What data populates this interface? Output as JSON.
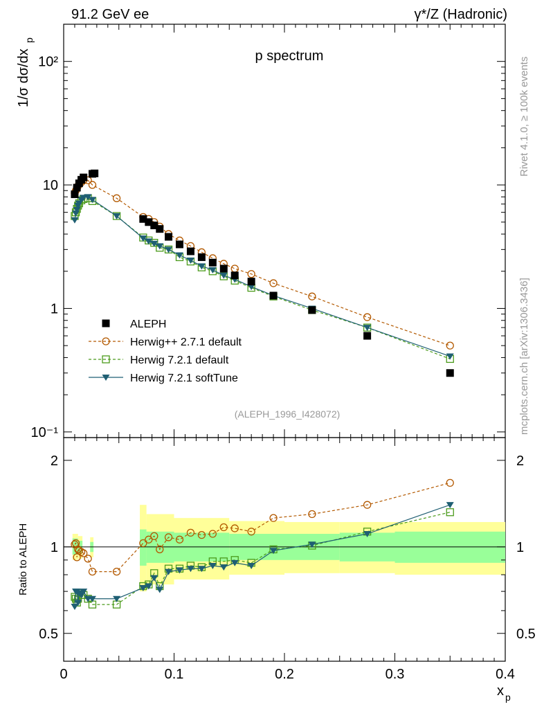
{
  "header": {
    "left": "91.2 GeV ee",
    "right": "γ*/Z (Hadronic)"
  },
  "side": {
    "rivet": "Rivet 4.1.0, ≥ 100k events",
    "mcplots": "mcplots.cern.ch [arXiv:1306.3436]"
  },
  "chart_data": {
    "type": "scatter",
    "title": "p spectrum",
    "analysis_tag": "(ALEPH_1996_I428072)",
    "xlabel": "x",
    "xlabel_sub": "p",
    "ylabel": "1/σ  dσ/dx",
    "ylabel_sub": "p",
    "ratio_ylabel": "Ratio to ALEPH",
    "xlim": [
      0,
      0.4
    ],
    "ylim": [
      0.09,
      200
    ],
    "yscale": "log",
    "ratio_ylim": [
      0.4,
      2.4
    ],
    "ratio_yscale": "log",
    "x_ticks": [
      0,
      0.1,
      0.2,
      0.3,
      0.4
    ],
    "x_tick_labels": [
      "0",
      "0.1",
      "0.2",
      "0.3",
      "0.4"
    ],
    "y_ticks": [
      0.1,
      1,
      10,
      100
    ],
    "y_tick_labels": [
      "10⁻¹",
      "1",
      "10",
      "10²"
    ],
    "ratio_ticks": [
      0.5,
      1,
      2
    ],
    "ratio_tick_labels": [
      "0.5",
      "1",
      "2"
    ],
    "legend": [
      {
        "name": "ALEPH",
        "style": "data"
      },
      {
        "name": "Herwig++ 2.7.1 default",
        "style": "circle"
      },
      {
        "name": "Herwig 7.2.1 default",
        "style": "square"
      },
      {
        "name": "Herwig 7.2.1 softTune",
        "style": "triangle"
      }
    ],
    "data": {
      "name": "ALEPH",
      "x": [
        0.01,
        0.012,
        0.014,
        0.016,
        0.018,
        0.026,
        0.028,
        0.072,
        0.077,
        0.082,
        0.087,
        0.095,
        0.105,
        0.115,
        0.125,
        0.135,
        0.145,
        0.155,
        0.17,
        0.19,
        0.225,
        0.275,
        0.35
      ],
      "values": [
        8.4,
        9.5,
        10.3,
        11.0,
        11.5,
        12.3,
        12.4,
        5.3,
        5.0,
        4.7,
        4.4,
        3.8,
        3.3,
        2.9,
        2.6,
        2.35,
        2.1,
        1.85,
        1.65,
        1.27,
        0.97,
        0.6,
        0.3
      ],
      "ratio_band_inner_x": [
        [
          0.069,
          0.075
        ],
        [
          0.075,
          0.1
        ],
        [
          0.1,
          0.15
        ],
        [
          0.15,
          0.2
        ],
        [
          0.2,
          0.25
        ],
        [
          0.25,
          0.3
        ],
        [
          0.3,
          0.4
        ]
      ],
      "ratio_band_inner_lo": [
        0.86,
        0.88,
        0.89,
        0.9,
        0.9,
        0.89,
        0.88
      ],
      "ratio_band_inner_hi": [
        1.15,
        1.13,
        1.12,
        1.11,
        1.11,
        1.12,
        1.13
      ],
      "ratio_band_outer_lo": [
        0.7,
        0.74,
        0.77,
        0.8,
        0.81,
        0.81,
        0.8
      ],
      "ratio_band_outer_hi": [
        1.4,
        1.3,
        1.26,
        1.23,
        1.22,
        1.22,
        1.22
      ],
      "small_bands": [
        {
          "x": [
            0.008,
            0.013
          ],
          "lo": 0.94,
          "hi": 1.07
        },
        {
          "x": [
            0.013,
            0.017
          ],
          "lo": 0.95,
          "hi": 1.05
        },
        {
          "x": [
            0.024,
            0.027
          ],
          "lo": 0.96,
          "hi": 1.04
        }
      ]
    },
    "series": [
      {
        "name": "Herwig++ 2.7.1 default",
        "color": "#b35900",
        "marker": "circle",
        "x": [
          0.01,
          0.011,
          0.012,
          0.013,
          0.014,
          0.016,
          0.018,
          0.022,
          0.026,
          0.048,
          0.072,
          0.077,
          0.082,
          0.087,
          0.095,
          0.105,
          0.115,
          0.125,
          0.135,
          0.145,
          0.155,
          0.17,
          0.19,
          0.225,
          0.275,
          0.35
        ],
        "values": [
          8.6,
          9.0,
          9.4,
          9.8,
          10.1,
          10.5,
          10.9,
          10.9,
          10.0,
          7.8,
          5.5,
          5.3,
          5.0,
          4.6,
          4.0,
          3.55,
          3.2,
          2.85,
          2.55,
          2.3,
          2.1,
          1.9,
          1.6,
          1.25,
          0.85,
          0.5
        ],
        "ratio": [
          1.02,
          1.03,
          0.92,
          0.98,
          0.97,
          0.96,
          0.95,
          0.91,
          0.82,
          0.82,
          1.03,
          1.06,
          1.09,
          0.98,
          1.08,
          1.06,
          1.12,
          1.1,
          1.11,
          1.17,
          1.16,
          1.13,
          1.26,
          1.3,
          1.4,
          1.67
        ]
      },
      {
        "name": "Herwig 7.2.1 default",
        "color": "#4a9a1a",
        "marker": "square",
        "x": [
          0.01,
          0.011,
          0.012,
          0.013,
          0.014,
          0.016,
          0.018,
          0.022,
          0.026,
          0.048,
          0.072,
          0.077,
          0.082,
          0.087,
          0.095,
          0.105,
          0.115,
          0.125,
          0.135,
          0.145,
          0.155,
          0.17,
          0.19,
          0.225,
          0.275,
          0.35
        ],
        "values": [
          5.6,
          6.0,
          6.4,
          6.8,
          7.1,
          7.5,
          7.7,
          7.8,
          7.4,
          5.6,
          3.75,
          3.55,
          3.4,
          3.1,
          3.0,
          2.6,
          2.4,
          2.15,
          2.0,
          1.82,
          1.68,
          1.47,
          1.25,
          0.97,
          0.7,
          0.39
        ],
        "ratio": [
          0.67,
          0.66,
          0.64,
          0.66,
          0.69,
          0.68,
          0.68,
          0.66,
          0.63,
          0.63,
          0.73,
          0.74,
          0.81,
          0.73,
          0.84,
          0.84,
          0.86,
          0.85,
          0.89,
          0.89,
          0.9,
          0.88,
          0.98,
          1.01,
          1.13,
          1.32
        ]
      },
      {
        "name": "Herwig 7.2.1 softTune",
        "color": "#1f5f73",
        "marker": "triangle",
        "x": [
          0.01,
          0.011,
          0.012,
          0.013,
          0.014,
          0.016,
          0.018,
          0.022,
          0.026,
          0.048,
          0.072,
          0.077,
          0.082,
          0.087,
          0.095,
          0.105,
          0.115,
          0.125,
          0.135,
          0.145,
          0.155,
          0.17,
          0.19,
          0.225,
          0.275,
          0.35
        ],
        "values": [
          5.2,
          5.9,
          6.3,
          6.8,
          7.1,
          7.6,
          7.9,
          8.0,
          7.6,
          5.6,
          3.7,
          3.5,
          3.35,
          3.2,
          3.0,
          2.7,
          2.45,
          2.2,
          2.05,
          1.85,
          1.72,
          1.5,
          1.27,
          1.0,
          0.7,
          0.41
        ],
        "ratio": [
          0.62,
          0.7,
          0.7,
          0.64,
          0.69,
          0.68,
          0.7,
          0.66,
          0.66,
          0.66,
          0.72,
          0.73,
          0.78,
          0.71,
          0.82,
          0.83,
          0.84,
          0.84,
          0.86,
          0.85,
          0.88,
          0.86,
          0.97,
          1.02,
          1.11,
          1.4
        ]
      }
    ]
  }
}
